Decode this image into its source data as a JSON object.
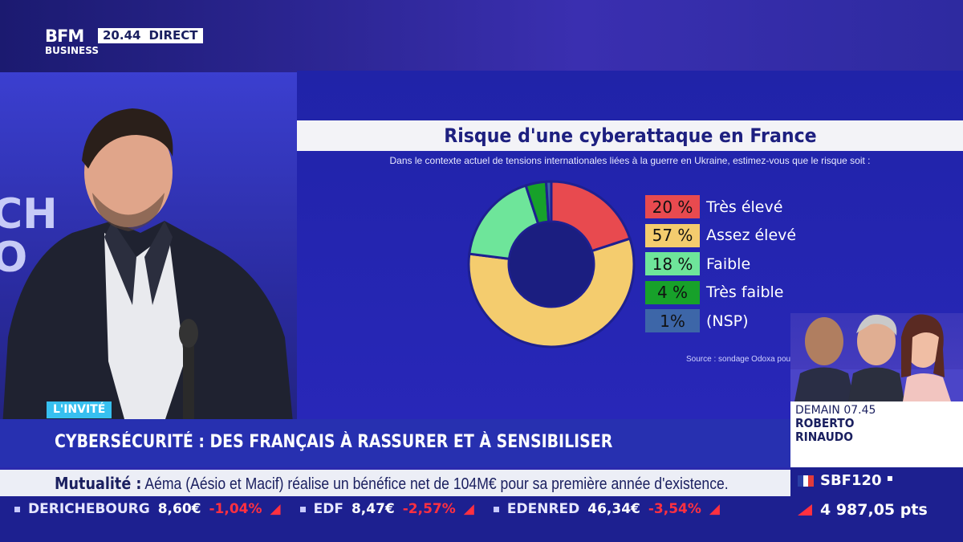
{
  "broadcast": {
    "logo_main": "BFM",
    "logo_sub": "BUSINESS",
    "time": "20.44",
    "live_label": "DIRECT",
    "background_text": "CH\nO"
  },
  "chart_panel": {
    "title": "Risque d'une cyberattaque en France",
    "subtitle": "Dans le contexte actuel de tensions internationales liées à la guerre en Ukraine, estimez-vous que le risque soit :",
    "source": "Source : sondage Odoxa pour BFM Business"
  },
  "chart_data": {
    "type": "pie",
    "title": "Risque d'une cyberattaque en France",
    "categories": [
      "Très élevé",
      "Assez élevé",
      "Faible",
      "Très faible",
      "(NSP)"
    ],
    "values": [
      20,
      57,
      18,
      4,
      1
    ],
    "value_labels": [
      "20 %",
      "57 %",
      "18 %",
      "4 %",
      "1%"
    ],
    "colors": [
      "#e84a4f",
      "#f4cc6e",
      "#6ee59a",
      "#17a12a",
      "#3d66a8"
    ],
    "donut": true,
    "legend_position": "right"
  },
  "upcoming": {
    "label": "DEMAIN 07.45",
    "name_line1": "ROBERTO",
    "name_line2": "RINAUDO"
  },
  "lower_third": {
    "tag": "L'INVITÉ",
    "headline": "CYBERSÉCURITÉ : DES FRANÇAIS À RASSURER ET À SENSIBILISER"
  },
  "news_crawl": {
    "category": "Mutualité :",
    "text": "Aéma (Aésio et Macif) réalise un bénéfice net de 104M€ pour sa première année d'existence."
  },
  "ticker": [
    {
      "name": "DERICHEBOURG",
      "value": "8,60€",
      "change": "-1,04%"
    },
    {
      "name": "EDF",
      "value": "8,47€",
      "change": "-2,57%"
    },
    {
      "name": "EDENRED",
      "value": "46,34€",
      "change": "-3,54%"
    }
  ],
  "index": {
    "name": "SBF120",
    "value": "4 987,05 pts",
    "colors": {
      "flag_blue": "#2a3fa6",
      "flag_white": "#ffffff",
      "flag_red": "#e23b3b",
      "down": "#ff3040"
    }
  }
}
